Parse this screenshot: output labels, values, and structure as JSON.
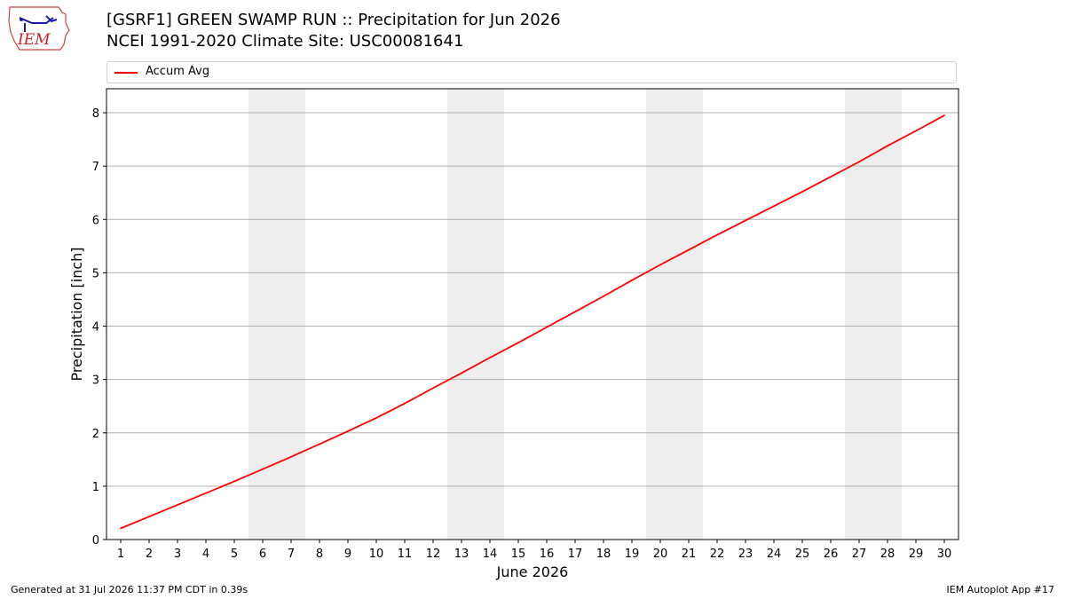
{
  "header": {
    "title_line1": "[GSRF1] GREEN SWAMP RUN :: Precipitation for Jun 2026",
    "title_line2": "NCEI 1991-2020 Climate Site: USC00081641",
    "logo_text": "IEM"
  },
  "footer": {
    "generated": "Generated at 31 Jul 2026 11:37 PM CDT in 0.39s",
    "app": "IEM Autoplot App #17"
  },
  "colors": {
    "series": "#ff0000",
    "weekend_band": "#eeeeee",
    "grid": "#b0b0b0"
  },
  "chart_data": {
    "type": "line",
    "xlabel": "June 2026",
    "ylabel": "Precipitation [inch]",
    "xlim": [
      0.5,
      30.5
    ],
    "ylim": [
      0,
      8.45
    ],
    "x_ticks": [
      1,
      2,
      3,
      4,
      5,
      6,
      7,
      8,
      9,
      10,
      11,
      12,
      13,
      14,
      15,
      16,
      17,
      18,
      19,
      20,
      21,
      22,
      23,
      24,
      25,
      26,
      27,
      28,
      29,
      30
    ],
    "y_ticks": [
      0,
      1,
      2,
      3,
      4,
      5,
      6,
      7,
      8
    ],
    "grid": "horizontal",
    "legend_position": "top",
    "weekend_bands": [
      [
        6,
        7
      ],
      [
        13,
        14
      ],
      [
        20,
        21
      ],
      [
        27,
        28
      ]
    ],
    "series": [
      {
        "name": "Accum Avg",
        "x": [
          1,
          2,
          3,
          4,
          5,
          6,
          7,
          8,
          9,
          10,
          11,
          12,
          13,
          14,
          15,
          16,
          17,
          18,
          19,
          20,
          21,
          22,
          23,
          24,
          25,
          26,
          27,
          28,
          29,
          30
        ],
        "values": [
          0.21,
          0.43,
          0.65,
          0.87,
          1.09,
          1.32,
          1.55,
          1.79,
          2.03,
          2.28,
          2.55,
          2.84,
          3.12,
          3.41,
          3.69,
          3.98,
          4.27,
          4.56,
          4.86,
          5.15,
          5.43,
          5.71,
          5.98,
          6.25,
          6.52,
          6.8,
          7.08,
          7.38,
          7.66,
          7.95
        ]
      }
    ]
  }
}
